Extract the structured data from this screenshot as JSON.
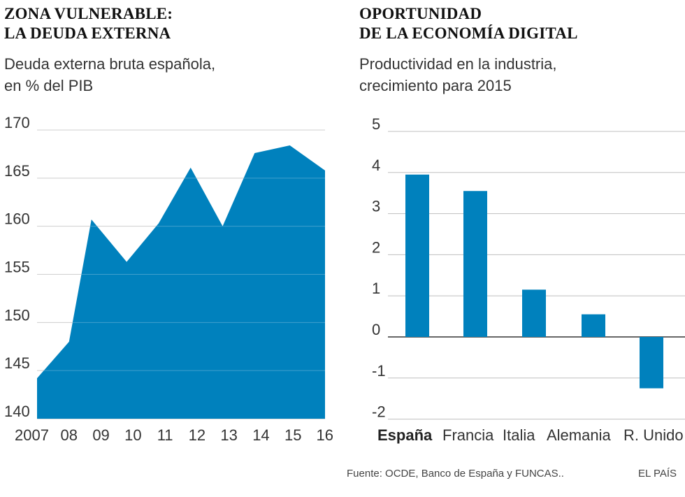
{
  "left": {
    "title_line1": "ZONA VULNERABLE:",
    "title_line2": "LA DEUDA EXTERNA",
    "subtitle_line1": "Deuda externa bruta española,",
    "subtitle_line2": "en % del PIB"
  },
  "right": {
    "title_line1": "OPORTUNIDAD",
    "title_line2": "DE LA ECONOMÍA DIGITAL",
    "subtitle_line1": "Productividad en la industria,",
    "subtitle_line2": "crecimiento para 2015"
  },
  "footer": {
    "source": "Fuente: OCDE, Banco de España y FUNCAS..",
    "brand": "EL PAÍS"
  },
  "colors": {
    "fill": "#0081bd",
    "grid": "#bfbfbf",
    "axis": "#333333"
  },
  "chart_data": [
    {
      "type": "area",
      "title": "ZONA VULNERABLE: LA DEUDA EXTERNA",
      "subtitle": "Deuda externa bruta española, en % del PIB",
      "x": [
        2007,
        2008,
        2008.7,
        2009.8,
        2010.8,
        2011.8,
        2012.8,
        2013.8,
        2014.9,
        2016
      ],
      "y": [
        144.2,
        148,
        160.7,
        156.3,
        160.3,
        166.1,
        160,
        167.6,
        168.4,
        165.8
      ],
      "x_ticks": [
        2007,
        2008,
        2009,
        2010,
        2011,
        2012,
        2013,
        2014,
        2015,
        2016
      ],
      "x_tick_labels": [
        "2007",
        "08",
        "09",
        "10",
        "11",
        "12",
        "13",
        "14",
        "15",
        "16"
      ],
      "y_ticks": [
        140,
        145,
        150,
        155,
        160,
        165,
        170
      ],
      "y_tick_labels": [
        "140",
        "145",
        "150",
        "155",
        "160",
        "165",
        "170"
      ],
      "xlim": [
        2007,
        2016
      ],
      "ylim": [
        140,
        170
      ],
      "grid": true
    },
    {
      "type": "bar",
      "title": "OPORTUNIDAD DE LA ECONOMÍA DIGITAL",
      "subtitle": "Productividad en la industria, crecimiento para 2015",
      "categories": [
        "España",
        "Francia",
        "Italia",
        "Alemania",
        "R. Unido"
      ],
      "values": [
        3.95,
        3.55,
        1.15,
        0.55,
        -1.25
      ],
      "highlight": "España",
      "y_ticks": [
        -2,
        -1,
        0,
        1,
        2,
        3,
        4,
        5
      ],
      "y_tick_labels": [
        "-2",
        "-1",
        "0",
        "1",
        "2",
        "3",
        "4",
        "5"
      ],
      "ylim": [
        -2,
        5
      ],
      "grid": true
    }
  ]
}
